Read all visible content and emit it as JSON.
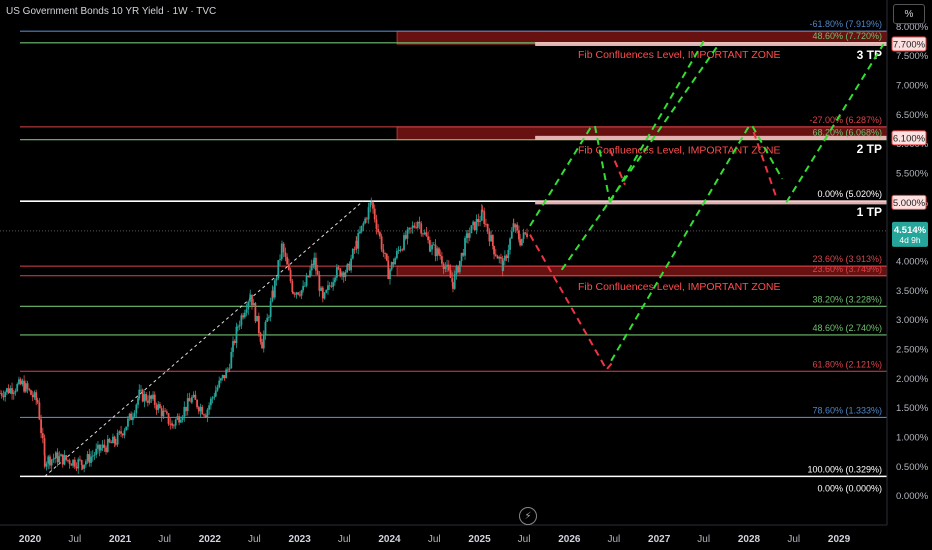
{
  "header": {
    "title": "US Government Bonds 10 YR Yield · 1W · TVC",
    "unit_button": "%"
  },
  "colors": {
    "blue": "#4f86c6",
    "green": "#6fbf6f",
    "red": "#d9434a",
    "white": "#ffffff",
    "zone": "#7a1414",
    "pink": "#f3c4c4",
    "dash_green": "#33dd33",
    "dash_red": "#ee3344",
    "up": "#26a69a",
    "down": "#ef5350",
    "axis_text": "#b2b5be"
  },
  "chart_data": {
    "type": "candlestick",
    "x_range": [
      "2019-09-01",
      "2029-07-15"
    ],
    "y_range": [
      -0.5,
      8.45
    ],
    "y_ticks": [
      "8.000%",
      "7.500%",
      "7.000%",
      "6.500%",
      "6.000%",
      "5.500%",
      "5.000%",
      "4.500%",
      "4.000%",
      "3.500%",
      "3.000%",
      "2.500%",
      "2.000%",
      "1.500%",
      "1.000%",
      "0.500%",
      "0.000%"
    ],
    "y_tick_values": [
      8,
      7.5,
      7,
      6.5,
      6,
      5.5,
      5,
      4.5,
      4,
      3.5,
      3,
      2.5,
      2,
      1.5,
      1,
      0.5,
      0
    ],
    "x_ticks": [
      {
        "label": "2020",
        "date": "2020-01-01",
        "bold": true
      },
      {
        "label": "Jul",
        "date": "2020-07-01",
        "bold": false
      },
      {
        "label": "2021",
        "date": "2021-01-01",
        "bold": true
      },
      {
        "label": "Jul",
        "date": "2021-07-01",
        "bold": false
      },
      {
        "label": "2022",
        "date": "2022-01-01",
        "bold": true
      },
      {
        "label": "Jul",
        "date": "2022-07-01",
        "bold": false
      },
      {
        "label": "2023",
        "date": "2023-01-01",
        "bold": true
      },
      {
        "label": "Jul",
        "date": "2023-07-01",
        "bold": false
      },
      {
        "label": "2024",
        "date": "2024-01-01",
        "bold": true
      },
      {
        "label": "Jul",
        "date": "2024-07-01",
        "bold": false
      },
      {
        "label": "2025",
        "date": "2025-01-01",
        "bold": true
      },
      {
        "label": "Jul",
        "date": "2025-07-01",
        "bold": false
      },
      {
        "label": "2026",
        "date": "2026-01-01",
        "bold": true
      },
      {
        "label": "Jul",
        "date": "2026-07-01",
        "bold": false
      },
      {
        "label": "2027",
        "date": "2027-01-01",
        "bold": true
      },
      {
        "label": "Jul",
        "date": "2027-07-01",
        "bold": false
      },
      {
        "label": "2028",
        "date": "2028-01-01",
        "bold": true
      },
      {
        "label": "Jul",
        "date": "2028-07-01",
        "bold": false
      },
      {
        "label": "2029",
        "date": "2029-01-01",
        "bold": true
      }
    ],
    "price_path": [
      [
        "2019-09-01",
        1.75
      ],
      [
        "2019-12-01",
        1.9
      ],
      [
        "2020-02-01",
        1.6
      ],
      [
        "2020-03-01",
        0.6
      ],
      [
        "2020-04-15",
        0.65
      ],
      [
        "2020-08-01",
        0.55
      ],
      [
        "2020-10-15",
        0.8
      ],
      [
        "2020-12-15",
        0.93
      ],
      [
        "2021-02-15",
        1.35
      ],
      [
        "2021-03-20",
        1.72
      ],
      [
        "2021-05-15",
        1.62
      ],
      [
        "2021-08-01",
        1.2
      ],
      [
        "2021-10-20",
        1.65
      ],
      [
        "2021-12-15",
        1.42
      ],
      [
        "2022-01-25",
        1.8
      ],
      [
        "2022-03-15",
        2.15
      ],
      [
        "2022-04-25",
        2.9
      ],
      [
        "2022-06-14",
        3.45
      ],
      [
        "2022-08-01",
        2.6
      ],
      [
        "2022-09-15",
        3.45
      ],
      [
        "2022-10-21",
        4.25
      ],
      [
        "2022-12-05",
        3.5
      ],
      [
        "2023-01-15",
        3.5
      ],
      [
        "2023-03-01",
        4.0
      ],
      [
        "2023-04-05",
        3.3
      ],
      [
        "2023-05-25",
        3.8
      ],
      [
        "2023-07-15",
        3.85
      ],
      [
        "2023-08-20",
        4.3
      ],
      [
        "2023-10-19",
        5.0
      ],
      [
        "2023-12-27",
        3.8
      ],
      [
        "2024-02-15",
        4.25
      ],
      [
        "2024-04-25",
        4.7
      ],
      [
        "2024-06-15",
        4.25
      ],
      [
        "2024-07-25",
        4.1
      ],
      [
        "2024-09-15",
        3.62
      ],
      [
        "2024-11-15",
        4.45
      ],
      [
        "2025-01-13",
        4.8
      ],
      [
        "2025-03-01",
        4.2
      ],
      [
        "2025-04-07",
        3.9
      ],
      [
        "2025-05-20",
        4.6
      ],
      [
        "2025-06-15",
        4.35
      ],
      [
        "2025-07-20",
        4.514
      ]
    ],
    "current": {
      "price_label": "4.514%",
      "countdown": "4d 9h",
      "value": 4.514
    },
    "price_tags": [
      {
        "label": "7.700%",
        "value": 7.7
      },
      {
        "label": "6.100%",
        "value": 6.1
      },
      {
        "label": "5.000%",
        "value": 5.0
      }
    ],
    "hlines": [
      {
        "value": 7.919,
        "color": "blue",
        "label": "-61.80% (7.919%)"
      },
      {
        "value": 7.72,
        "color": "green",
        "label": "48.60% (7.720%)"
      },
      {
        "value": 6.287,
        "color": "red",
        "label": "-27.00% (6.287%)"
      },
      {
        "value": 6.068,
        "color": "green",
        "label": "68.20% (6.068%)"
      },
      {
        "value": 5.02,
        "color": "white",
        "label": "0.00% (5.020%)"
      },
      {
        "value": 3.913,
        "color": "red",
        "label": "23.60% (3.913%)"
      },
      {
        "value": 3.749,
        "color": "red",
        "label": "23.60% (3.749%)"
      },
      {
        "value": 3.228,
        "color": "green",
        "label": "38.20% (3.228%)"
      },
      {
        "value": 2.74,
        "color": "green",
        "label": "48.60% (2.740%)"
      },
      {
        "value": 2.121,
        "color": "red",
        "label": "61.80% (2.121%)"
      },
      {
        "value": 1.333,
        "color": "blue",
        "label": "78.60% (1.333%)"
      },
      {
        "value": 0.329,
        "color": "white",
        "label": "100.00% (0.329%)"
      },
      {
        "value": 0.0,
        "color": "none",
        "label": "0.00% (0.000%)"
      }
    ],
    "zones": [
      {
        "from": "2024-02-01",
        "to": "2029-07-15",
        "ymin": 7.7,
        "ymax": 7.919,
        "label": "Fib Confluences Level, IMPORTANT ZONE"
      },
      {
        "from": "2024-02-01",
        "to": "2029-07-15",
        "ymin": 6.068,
        "ymax": 6.287,
        "label": "Fib Confluences Level, IMPORTANT ZONE"
      },
      {
        "from": "2024-02-01",
        "to": "2029-07-15",
        "ymin": 3.749,
        "ymax": 3.913,
        "label": "Fib Confluences Level, IMPORTANT ZONE"
      }
    ],
    "targets": [
      {
        "label": "3 TP",
        "value": 7.7
      },
      {
        "label": "2 TP",
        "value": 6.1
      },
      {
        "label": "1 TP",
        "value": 5.02
      }
    ],
    "trendline": [
      [
        "2020-03-01",
        0.329
      ],
      [
        "2023-09-15",
        5.02
      ]
    ],
    "projection_red": [
      [
        "2025-07-25",
        4.45
      ],
      [
        "2026-06-01",
        2.15
      ],
      [
        "2026-07-01",
        2.3
      ]
    ],
    "projection_green": [
      [
        [
          "2025-07-25",
          4.6
        ],
        [
          "2026-04-01",
          6.3
        ]
      ],
      [
        [
          "2026-04-15",
          6.3
        ],
        [
          "2026-06-15",
          5.0
        ]
      ],
      [
        [
          "2026-06-15",
          5.0
        ],
        [
          "2027-07-01",
          7.75
        ]
      ],
      [
        [
          "2025-12-01",
          3.85
        ],
        [
          "2027-09-01",
          7.7
        ]
      ],
      [
        [
          "2026-06-20",
          2.3
        ],
        [
          "2028-01-01",
          6.3
        ]
      ],
      [
        [
          "2028-01-15",
          6.3
        ],
        [
          "2028-05-15",
          5.4
        ]
      ],
      [
        [
          "2028-06-01",
          5.0
        ],
        [
          "2029-07-01",
          7.7
        ]
      ]
    ],
    "projection_red_pullbacks": [
      [
        [
          "2026-06-15",
          5.9
        ],
        [
          "2026-08-15",
          5.3
        ]
      ],
      [
        [
          "2028-01-20",
          6.2
        ],
        [
          "2028-04-20",
          5.1
        ]
      ]
    ]
  }
}
